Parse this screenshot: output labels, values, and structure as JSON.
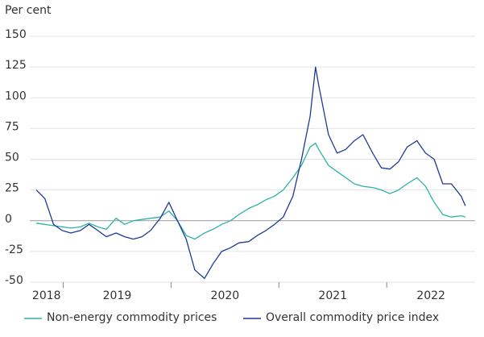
{
  "chart_data": {
    "type": "line",
    "y_label": "Per cent",
    "x": [
      2018.75,
      2018.83,
      2018.91,
      2018.99,
      2019.07,
      2019.16,
      2019.24,
      2019.32,
      2019.4,
      2019.49,
      2019.57,
      2019.65,
      2019.73,
      2019.81,
      2019.9,
      2019.98,
      2020.06,
      2020.14,
      2020.22,
      2020.31,
      2020.39,
      2020.47,
      2020.55,
      2020.63,
      2020.72,
      2020.8,
      2020.88,
      2020.96,
      2021.04,
      2021.13,
      2021.21,
      2021.29,
      2021.34,
      2021.37,
      2021.46,
      2021.54,
      2021.62,
      2021.7,
      2021.78,
      2021.87,
      2021.95,
      2022.03,
      2022.11,
      2022.19,
      2022.28,
      2022.36,
      2022.44,
      2022.52,
      2022.6,
      2022.69,
      2022.73
    ],
    "series": [
      {
        "name": "Non-energy commodity prices",
        "color": "#2bb3a8",
        "values": [
          -2,
          -3,
          -4,
          -5,
          -6,
          -5,
          -2,
          -5,
          -7,
          2,
          -3,
          0,
          1,
          2,
          3,
          8,
          0,
          -12,
          -15,
          -10,
          -7,
          -3,
          0,
          5,
          10,
          13,
          17,
          20,
          25,
          35,
          45,
          60,
          63,
          58,
          45,
          40,
          35,
          30,
          28,
          27,
          25,
          22,
          25,
          30,
          35,
          28,
          15,
          5,
          3,
          4,
          3
        ]
      },
      {
        "name": "Overall commodity price index",
        "color": "#1f3a93",
        "values": [
          25,
          18,
          -3,
          -8,
          -10,
          -8,
          -3,
          -8,
          -13,
          -10,
          -13,
          -15,
          -13,
          -8,
          2,
          15,
          0,
          -15,
          -40,
          -47,
          -35,
          -25,
          -22,
          -18,
          -17,
          -12,
          -8,
          -3,
          3,
          20,
          50,
          85,
          125,
          110,
          70,
          55,
          58,
          65,
          70,
          55,
          43,
          42,
          48,
          60,
          65,
          55,
          50,
          30,
          30,
          20,
          12
        ]
      }
    ],
    "xlim": [
      2018.69,
      2022.82
    ],
    "xticks": [
      2019,
      2020,
      2021,
      2022
    ],
    "year_labels": [
      "2018",
      "2019",
      "2020",
      "2021",
      "2022"
    ],
    "ylim": [
      -50,
      150
    ],
    "yticks": [
      -50,
      -25,
      0,
      25,
      50,
      75,
      100,
      125,
      150
    ],
    "grid": true,
    "legend": "bottom"
  }
}
